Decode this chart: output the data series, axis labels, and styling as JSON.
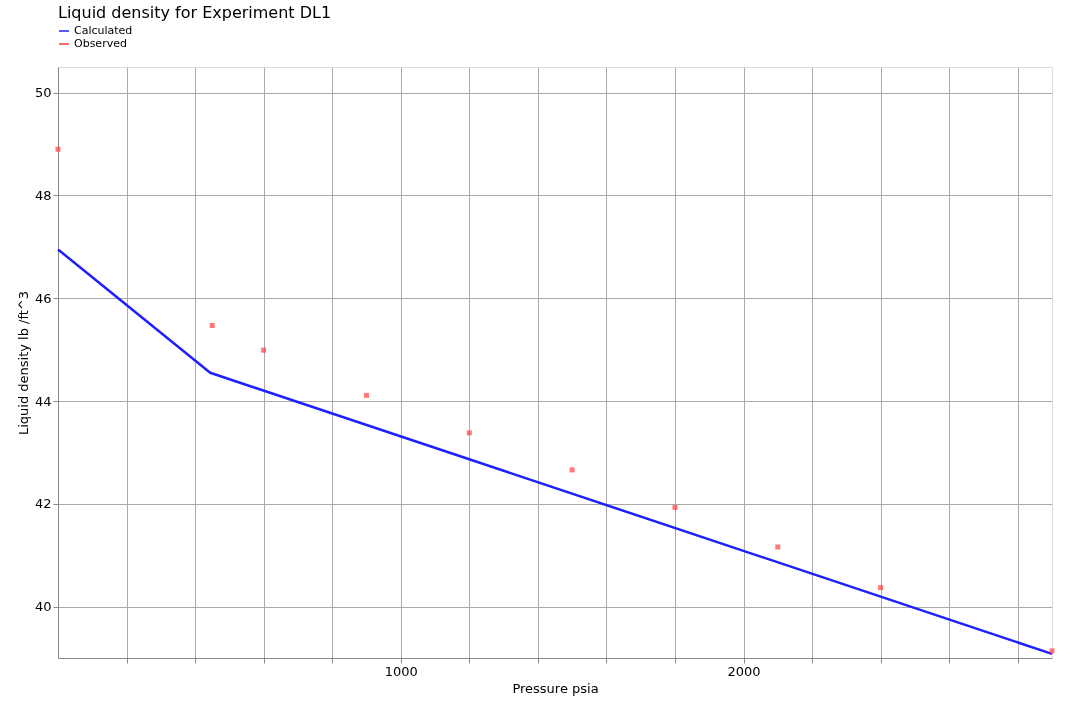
{
  "chart_data": {
    "type": "line",
    "title": "Liquid density for Experiment DL1",
    "xlabel": "Pressure   psia",
    "ylabel": "Liquid density   lb /ft^3",
    "xlim": [
      0,
      2900
    ],
    "ylim": [
      39,
      50.5
    ],
    "xticks": [
      {
        "value": 200,
        "label": null
      },
      {
        "value": 400,
        "label": null
      },
      {
        "value": 600,
        "label": null
      },
      {
        "value": 800,
        "label": null
      },
      1000,
      {
        "value": 1200,
        "label": null
      },
      {
        "value": 1400,
        "label": null
      },
      {
        "value": 1600,
        "label": null
      },
      {
        "value": 1800,
        "label": null
      },
      2000,
      {
        "value": 2200,
        "label": null
      },
      {
        "value": 2400,
        "label": null
      },
      {
        "value": 2600,
        "label": null
      },
      {
        "value": 2800,
        "label": null
      }
    ],
    "yticks": [
      40,
      42,
      44,
      46,
      48,
      50
    ],
    "grid": true,
    "legend": "top left",
    "series": [
      {
        "name": "Calculated",
        "type": "line",
        "color": "#1f1fff",
        "marker": "none",
        "line_style": "solid",
        "x": [
          0,
          444,
          2900
        ],
        "values": [
          46.95,
          44.55,
          39.08
        ]
      },
      {
        "name": "Observed",
        "type": "scatter",
        "color": "#ff4040",
        "marker": "square",
        "x": [
          0,
          450,
          600,
          900,
          1200,
          1500,
          1800,
          2100,
          2400,
          2900
        ],
        "values": [
          48.9,
          45.47,
          44.99,
          44.11,
          43.38,
          42.66,
          41.93,
          41.16,
          40.37,
          39.14
        ]
      }
    ]
  }
}
